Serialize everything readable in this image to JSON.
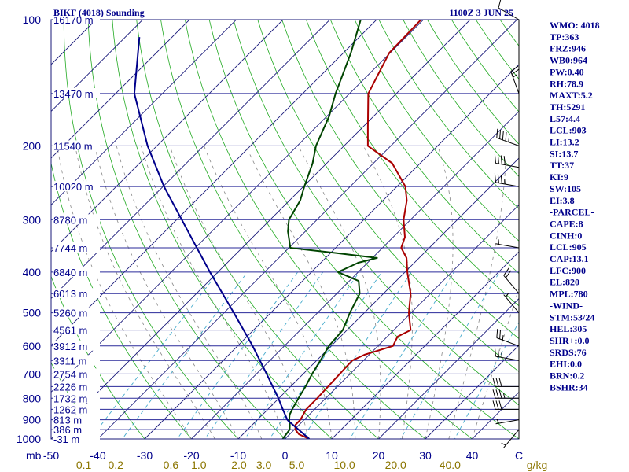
{
  "header": {
    "station_title": "BIKF (4018) Sounding",
    "valid_time": "1100Z  3 JUN 25"
  },
  "indices": [
    "WMO: 4018",
    "TP:363",
    "FRZ:946",
    "WB0:964",
    "PW:0.40",
    "RH:78.9",
    "MAXT:5.2",
    "TH:5291",
    "L57:4.4",
    "LCL:903",
    "LI:13.2",
    "SI:13.7",
    "TT:37",
    "KI:9",
    "SW:105",
    "EI:3.8",
    "-PARCEL-",
    "CAPE:8",
    "CINH:0",
    "LCL:905",
    "CAP:13.1",
    "LFC:900",
    "EL:820",
    "MPL:780",
    "-WIND-",
    "STM:53/24",
    "HEL:305",
    "SHR+:0.0",
    "SRDS:76",
    "EHI:0.0",
    "BRN:0.2",
    "BSHR:34"
  ],
  "colors": {
    "isobar": "#2a2a9a",
    "isotherm": "#1a1a7a",
    "dry_adiabat": "#22aa22",
    "moist_adiabat": "#888888",
    "mixing_ratio": "#44aacc",
    "temperature": "#aa0000",
    "dewpoint": "#004400",
    "parcel": "#00008b",
    "label_blue": "#00008b",
    "label_gold": "#8b7500"
  },
  "chart_data": {
    "type": "line",
    "title": "",
    "xlabel": "",
    "ylabel": "mb",
    "y_scale": "log",
    "ylim": [
      1000,
      100
    ],
    "xlim": [
      -50,
      50
    ],
    "pressure_ticks": [
      {
        "p": 100,
        "label": "100"
      },
      {
        "p": 200,
        "label": "200"
      },
      {
        "p": 300,
        "label": "300"
      },
      {
        "p": 400,
        "label": "400"
      },
      {
        "p": 500,
        "label": "500"
      },
      {
        "p": 600,
        "label": "600"
      },
      {
        "p": 700,
        "label": "700"
      },
      {
        "p": 800,
        "label": "800"
      },
      {
        "p": 900,
        "label": "900"
      },
      {
        "p": 1000,
        "label": "1000"
      }
    ],
    "temperature_ticks": [
      {
        "t": -50,
        "label": "-50"
      },
      {
        "t": -40,
        "label": "-40"
      },
      {
        "t": -30,
        "label": "-30"
      },
      {
        "t": -20,
        "label": "-20"
      },
      {
        "t": -10,
        "label": "-10"
      },
      {
        "t": 0,
        "label": "0"
      },
      {
        "t": 10,
        "label": "10"
      },
      {
        "t": 20,
        "label": "20"
      },
      {
        "t": 30,
        "label": "30"
      },
      {
        "t": 40,
        "label": "40"
      },
      {
        "t": 50,
        "label": "C"
      }
    ],
    "mixing_ratio_label_unit": "g/kg",
    "mixing_ratio_labels": [
      {
        "w": 0.1,
        "label": "0.1"
      },
      {
        "w": 0.2,
        "label": "0.2"
      },
      {
        "w": 0.6,
        "label": "0.6"
      },
      {
        "w": 1.0,
        "label": "1.0"
      },
      {
        "w": 2.0,
        "label": "2.0"
      },
      {
        "w": 3.0,
        "label": "3.0"
      },
      {
        "w": 5.0,
        "label": "5.0"
      },
      {
        "w": 10.0,
        "label": "10.0"
      },
      {
        "w": 20.0,
        "label": "20.0"
      },
      {
        "w": 40.0,
        "label": "40.0"
      }
    ],
    "heights": [
      {
        "p": 100,
        "label": "16170 m"
      },
      {
        "p": 150,
        "label": "13470 m"
      },
      {
        "p": 200,
        "label": "11540 m"
      },
      {
        "p": 250,
        "label": "10020 m"
      },
      {
        "p": 300,
        "label": "8780 m"
      },
      {
        "p": 350,
        "label": "7744 m"
      },
      {
        "p": 400,
        "label": "6840 m"
      },
      {
        "p": 450,
        "label": "6013 m"
      },
      {
        "p": 500,
        "label": "5260 m"
      },
      {
        "p": 550,
        "label": "4561 m"
      },
      {
        "p": 600,
        "label": "3912 m"
      },
      {
        "p": 650,
        "label": "3311 m"
      },
      {
        "p": 700,
        "label": "2754 m"
      },
      {
        "p": 750,
        "label": "2226 m"
      },
      {
        "p": 800,
        "label": "1732 m"
      },
      {
        "p": 850,
        "label": "1262 m"
      },
      {
        "p": 900,
        "label": "813 m"
      },
      {
        "p": 950,
        "label": "386 m"
      },
      {
        "p": 1000,
        "label": "-31 m"
      }
    ],
    "series": [
      {
        "key": "temperature",
        "points": [
          [
            1000,
            5.2
          ],
          [
            975,
            2.0
          ],
          [
            950,
            0.2
          ],
          [
            925,
            -0.8
          ],
          [
            900,
            -0.8
          ],
          [
            850,
            -1.8
          ],
          [
            800,
            -1.8
          ],
          [
            750,
            -2.0
          ],
          [
            700,
            -2.2
          ],
          [
            650,
            -2.4
          ],
          [
            630,
            -1.0
          ],
          [
            600,
            3.2
          ],
          [
            570,
            2.2
          ],
          [
            550,
            3.6
          ],
          [
            500,
            -0.5
          ],
          [
            450,
            -4.2
          ],
          [
            400,
            -9.5
          ],
          [
            370,
            -12.7
          ],
          [
            350,
            -16.0
          ],
          [
            330,
            -17.5
          ],
          [
            300,
            -21.5
          ],
          [
            270,
            -24.9
          ],
          [
            250,
            -28.2
          ],
          [
            220,
            -36.0
          ],
          [
            200,
            -44.9
          ],
          [
            180,
            -49.0
          ],
          [
            150,
            -56.0
          ],
          [
            120,
            -60.2
          ],
          [
            100,
            -60.5
          ]
        ]
      },
      {
        "key": "dewpoint",
        "points": [
          [
            1000,
            -0.5
          ],
          [
            950,
            -1.0
          ],
          [
            925,
            -2.0
          ],
          [
            900,
            -3.2
          ],
          [
            875,
            -4.2
          ],
          [
            850,
            -4.8
          ],
          [
            800,
            -5.8
          ],
          [
            750,
            -6.8
          ],
          [
            700,
            -8.1
          ],
          [
            650,
            -9.2
          ],
          [
            600,
            -10.5
          ],
          [
            550,
            -10.9
          ],
          [
            500,
            -13.1
          ],
          [
            450,
            -15.1
          ],
          [
            420,
            -18.0
          ],
          [
            400,
            -24.3
          ],
          [
            380,
            -22.0
          ],
          [
            370,
            -19.0
          ],
          [
            360,
            -29.0
          ],
          [
            350,
            -39.7
          ],
          [
            320,
            -43.7
          ],
          [
            300,
            -46.0
          ],
          [
            270,
            -47.7
          ],
          [
            250,
            -49.8
          ],
          [
            220,
            -53.0
          ],
          [
            200,
            -56.0
          ],
          [
            170,
            -59.5
          ],
          [
            150,
            -63.0
          ],
          [
            120,
            -68.4
          ],
          [
            100,
            -73.4
          ]
        ]
      },
      {
        "key": "parcel",
        "points": [
          [
            1000,
            5.2
          ],
          [
            950,
            0.9
          ],
          [
            905,
            -3.2
          ],
          [
            900,
            -3.6
          ],
          [
            850,
            -6.8
          ],
          [
            800,
            -10.1
          ],
          [
            700,
            -17.8
          ],
          [
            600,
            -26.8
          ],
          [
            500,
            -37.9
          ],
          [
            400,
            -51.7
          ],
          [
            300,
            -68.9
          ],
          [
            250,
            -79.8
          ],
          [
            200,
            -92.0
          ],
          [
            150,
            -106.0
          ],
          [
            110,
            -117.0
          ]
        ]
      }
    ],
    "wind_barbs": [
      {
        "p": 100,
        "dir": 300,
        "speed": 10
      },
      {
        "p": 150,
        "dir": 340,
        "speed": 25
      },
      {
        "p": 200,
        "dir": 290,
        "speed": 45
      },
      {
        "p": 225,
        "dir": 280,
        "speed": 40
      },
      {
        "p": 250,
        "dir": 280,
        "speed": 35
      },
      {
        "p": 350,
        "dir": 280,
        "speed": 5
      },
      {
        "p": 450,
        "dir": 320,
        "speed": 20
      },
      {
        "p": 500,
        "dir": 320,
        "speed": 5
      },
      {
        "p": 600,
        "dir": 290,
        "speed": 25
      },
      {
        "p": 650,
        "dir": 280,
        "speed": 25
      },
      {
        "p": 750,
        "dir": 270,
        "speed": 30
      },
      {
        "p": 800,
        "dir": 270,
        "speed": 35
      },
      {
        "p": 850,
        "dir": 270,
        "speed": 30
      },
      {
        "p": 900,
        "dir": 260,
        "speed": 5
      },
      {
        "p": 950,
        "dir": 220,
        "speed": 5
      }
    ]
  }
}
